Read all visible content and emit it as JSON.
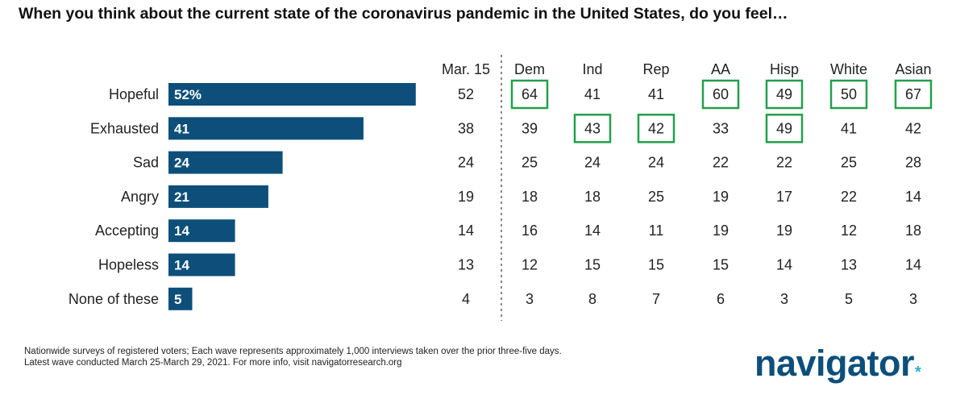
{
  "title": "When you think about the current state of the coronavirus pandemic in the United States, do you feel…",
  "chart_data": {
    "type": "bar",
    "orientation": "horizontal",
    "categories": [
      "Hopeful",
      "Exhausted",
      "Sad",
      "Angry",
      "Accepting",
      "Hopeless",
      "None of these"
    ],
    "values": [
      52,
      41,
      24,
      21,
      14,
      14,
      5
    ],
    "value_labels": [
      "52%",
      "41",
      "24",
      "21",
      "14",
      "14",
      "5"
    ],
    "bar_color": "#0d4f7a",
    "grid": false
  },
  "table": {
    "columns": [
      "Mar. 15",
      "Dem",
      "Ind",
      "Rep",
      "AA",
      "Hisp",
      "White",
      "Asian"
    ],
    "rows": [
      [
        "52",
        "64",
        "41",
        "41",
        "60",
        "49",
        "50",
        "67"
      ],
      [
        "38",
        "39",
        "43",
        "42",
        "33",
        "49",
        "41",
        "42"
      ],
      [
        "24",
        "25",
        "24",
        "24",
        "22",
        "22",
        "25",
        "28"
      ],
      [
        "19",
        "18",
        "18",
        "25",
        "19",
        "17",
        "22",
        "14"
      ],
      [
        "14",
        "16",
        "14",
        "11",
        "19",
        "19",
        "12",
        "18"
      ],
      [
        "13",
        "12",
        "15",
        "15",
        "15",
        "14",
        "13",
        "14"
      ],
      [
        "4",
        "3",
        "8",
        "7",
        "6",
        "3",
        "5",
        "3"
      ]
    ],
    "highlighted": [
      [
        0,
        1
      ],
      [
        0,
        4
      ],
      [
        0,
        5
      ],
      [
        0,
        6
      ],
      [
        0,
        7
      ],
      [
        1,
        2
      ],
      [
        1,
        3
      ],
      [
        1,
        5
      ]
    ],
    "highlight_color": "#22a04b"
  },
  "footnote": {
    "line1": "Nationwide surveys of registered voters; Each wave represents approximately 1,000 interviews taken over the prior three-five days.",
    "line2": "Latest wave conducted March 25-March 29, 2021. For more info, visit navigatorresearch.org"
  },
  "logo": {
    "text": "navigator",
    "star": "*"
  }
}
